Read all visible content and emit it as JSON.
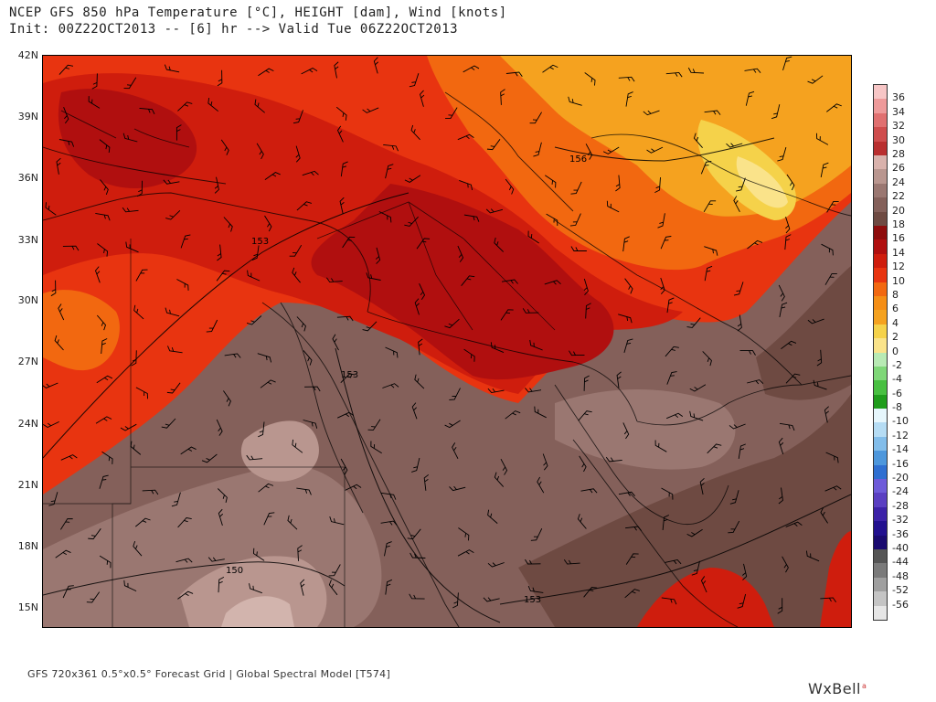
{
  "header": {
    "title_line1": "NCEP GFS 850 hPa Temperature [°C], HEIGHT [dam], Wind [knots]",
    "title_line2": "Init: 00Z22OCT2013 -- [6] hr --> Valid Tue 06Z22OCT2013"
  },
  "map": {
    "latitude_labels": [
      "42N",
      "39N",
      "36N",
      "33N",
      "30N",
      "27N",
      "24N",
      "21N",
      "18N",
      "15N"
    ],
    "contour_labels": [
      "156",
      "153",
      "153",
      "150",
      "153"
    ],
    "colors": {
      "deep_red": "#b00f0f",
      "red": "#cf1d0d",
      "red_orange": "#e83410",
      "orange": "#f26810",
      "light_orange": "#f5a21f",
      "yellow": "#f5d24a",
      "pale_yellow": "#fae38a",
      "brown_dark": "#6e4a42",
      "brown": "#84605a",
      "brown_light": "#9a7771",
      "pink_brown": "#b9968f",
      "pale_pink": "#d2b4ad"
    }
  },
  "legend": {
    "labels": [
      "36",
      "34",
      "32",
      "30",
      "28",
      "26",
      "24",
      "22",
      "20",
      "18",
      "16",
      "14",
      "12",
      "10",
      "8",
      "6",
      "4",
      "2",
      "0",
      "-2",
      "-4",
      "-6",
      "-8",
      "-10",
      "-12",
      "-14",
      "-16",
      "-20",
      "-24",
      "-28",
      "-32",
      "-36",
      "-40",
      "-44",
      "-48",
      "-52",
      "-56"
    ],
    "colors": [
      "#f7c6c6",
      "#ee9a9a",
      "#e07070",
      "#cf4d4d",
      "#b92f2f",
      "#d9b2ac",
      "#b9968f",
      "#9a7771",
      "#84605a",
      "#6e4a42",
      "#8e0c0c",
      "#b00f0f",
      "#cf1d0d",
      "#e83410",
      "#f26810",
      "#f58e15",
      "#f5a21f",
      "#f5d24a",
      "#fae38a",
      "#b8eab4",
      "#7fd778",
      "#48c041",
      "#1f9d1c",
      "#e6f6fc",
      "#b5dcf4",
      "#82bdea",
      "#4d97dc",
      "#2f6fd1",
      "#6e5bd9",
      "#5a3fc2",
      "#3c22a8",
      "#22108f",
      "#1a0a70",
      "#555555",
      "#7a7a7a",
      "#9f9f9f",
      "#c4c4c4",
      "#e6e6e6"
    ]
  },
  "footer": {
    "text": "GFS 720x361 0.5°x0.5° Forecast Grid | Global Spectral Model [T574]",
    "brand": "WxBell",
    "brand_mark": "a"
  }
}
